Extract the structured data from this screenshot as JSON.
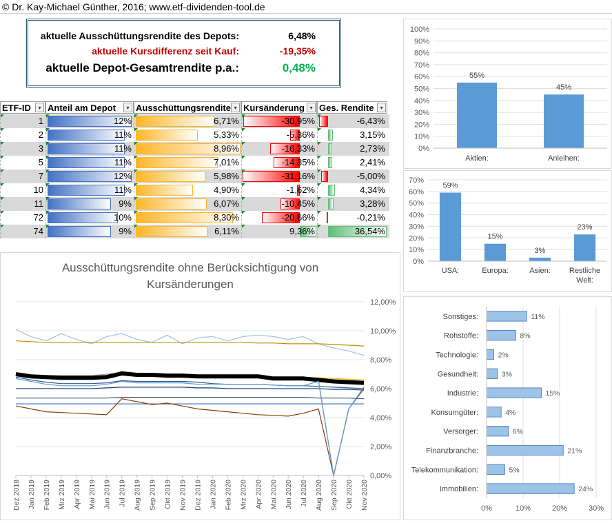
{
  "header": {
    "copyright": "© Dr. Kay-Michael Günther, 2016; www.etf-dividenden-tool.de"
  },
  "summary": {
    "rows": [
      {
        "label": "aktuelle Ausschüttungsrendite des Depots:",
        "value": "6,48%",
        "color": "#000000"
      },
      {
        "label": "aktuelle Kursdifferenz seit Kauf:",
        "value": "-19,35%",
        "color": "#c00000"
      },
      {
        "label": "aktuelle Depot-Gesamtrendite p.a.:",
        "value": "0,48%",
        "color": "#00b050"
      }
    ]
  },
  "table": {
    "headers": [
      "ETF-ID",
      "Anteil am Depot",
      "Ausschüttungsrendite",
      "Kursänderung",
      "Ges. Rendite"
    ],
    "rows": [
      {
        "id": "1",
        "anteil": "12%",
        "ausschuettung": "6,71%",
        "kurs": "-30,95%",
        "ges": "-6,43%",
        "anteil_v": 12,
        "aus_v": 6.71,
        "kurs_v": -30.95,
        "ges_v": -6.43
      },
      {
        "id": "2",
        "anteil": "11%",
        "ausschuettung": "5,33%",
        "kurs": "-5,36%",
        "ges": "3,15%",
        "anteil_v": 11,
        "aus_v": 5.33,
        "kurs_v": -5.36,
        "ges_v": 3.15
      },
      {
        "id": "3",
        "anteil": "11%",
        "ausschuettung": "8,96%",
        "kurs": "-16,33%",
        "ges": "2,73%",
        "anteil_v": 11,
        "aus_v": 8.96,
        "kurs_v": -16.33,
        "ges_v": 2.73
      },
      {
        "id": "5",
        "anteil": "11%",
        "ausschuettung": "7,01%",
        "kurs": "-14,35%",
        "ges": "2,41%",
        "anteil_v": 11,
        "aus_v": 7.01,
        "kurs_v": -14.35,
        "ges_v": 2.41
      },
      {
        "id": "7",
        "anteil": "12%",
        "ausschuettung": "5,98%",
        "kurs": "-31,16%",
        "ges": "-5,00%",
        "anteil_v": 12,
        "aus_v": 5.98,
        "kurs_v": -31.16,
        "ges_v": -5.0
      },
      {
        "id": "10",
        "anteil": "11%",
        "ausschuettung": "4,90%",
        "kurs": "-1,62%",
        "ges": "4,34%",
        "anteil_v": 11,
        "aus_v": 4.9,
        "kurs_v": -1.62,
        "ges_v": 4.34
      },
      {
        "id": "11",
        "anteil": "9%",
        "ausschuettung": "6,07%",
        "kurs": "-10,45%",
        "ges": "3,28%",
        "anteil_v": 9,
        "aus_v": 6.07,
        "kurs_v": -10.45,
        "ges_v": 3.28
      },
      {
        "id": "72",
        "anteil": "10%",
        "ausschuettung": "8,30%",
        "kurs": "-20,66%",
        "ges": "-0,21%",
        "anteil_v": 10,
        "aus_v": 8.3,
        "kurs_v": -20.66,
        "ges_v": -0.21
      },
      {
        "id": "74",
        "anteil": "9%",
        "ausschuettung": "6,11%",
        "kurs": "9,36%",
        "ges": "36,54%",
        "anteil_v": 9,
        "aus_v": 6.11,
        "kurs_v": 9.36,
        "ges_v": 36.54
      }
    ]
  },
  "chart_data": [
    {
      "type": "bar",
      "categories": [
        "Aktien:",
        "Anleihen:"
      ],
      "values": [
        55,
        45
      ],
      "data_labels": [
        "55%",
        "45%"
      ],
      "ylim": [
        0,
        100
      ],
      "yticks": [
        "0%",
        "10%",
        "20%",
        "30%",
        "40%",
        "50%",
        "60%",
        "70%",
        "80%",
        "90%",
        "100%"
      ],
      "color": "#5b9bd5"
    },
    {
      "type": "bar",
      "categories": [
        "USA:",
        "Europa:",
        "Asien:",
        "Restliche Welt:"
      ],
      "values": [
        59,
        15,
        3,
        23
      ],
      "data_labels": [
        "59%",
        "15%",
        "3%",
        "23%"
      ],
      "ylim": [
        0,
        70
      ],
      "yticks": [
        "0%",
        "10%",
        "20%",
        "30%",
        "40%",
        "50%",
        "60%",
        "70%"
      ],
      "color": "#5b9bd5"
    },
    {
      "type": "line",
      "title": "Ausschüttungsrendite ohne Berücksichtigung von Kursänderungen",
      "x": [
        "Dez 2018",
        "Jan 2019",
        "Feb 2019",
        "Mrz 2019",
        "Apr 2019",
        "Mai 2019",
        "Jun 2019",
        "Jul 2019",
        "Aug 2019",
        "Sep 2019",
        "Okt 2019",
        "Nov 2019",
        "Dez 2019",
        "Jan 2020",
        "Feb 2020",
        "Mrz 2020",
        "Apr 2020",
        "Mai 2020",
        "Jun 2020",
        "Jul 2020",
        "Aug 2020",
        "Sep 2020",
        "Okt 2020",
        "Nov 2020"
      ],
      "ylim": [
        0,
        12
      ],
      "yticks": [
        "0,00%",
        "2,00%",
        "4,00%",
        "6,00%",
        "8,00%",
        "10,00%",
        "12,00%"
      ],
      "series": [
        {
          "color": "#9dc3e6",
          "width": 1.2,
          "values": [
            10.1,
            9.6,
            9.3,
            9.8,
            9.4,
            9.1,
            9.6,
            9.8,
            9.4,
            9.2,
            9.7,
            9.1,
            9.5,
            9.6,
            9.3,
            9.6,
            9.7,
            9.6,
            9.4,
            9.6,
            9.1,
            8.8,
            8.6,
            8.3
          ]
        },
        {
          "color": "#bf9000",
          "width": 1.2,
          "values": [
            9.3,
            9.25,
            9.2,
            9.2,
            9.2,
            9.2,
            9.2,
            9.2,
            9.2,
            9.2,
            9.2,
            9.2,
            9.2,
            9.2,
            9.2,
            9.2,
            9.15,
            9.15,
            9.1,
            9.1,
            9.1,
            9.05,
            9.0,
            8.95
          ]
        },
        {
          "color": "#a5a5a5",
          "width": 1.2,
          "values": [
            7.0,
            6.9,
            6.9,
            6.9,
            6.9,
            6.9,
            7.0,
            7.1,
            7.0,
            7.0,
            7.0,
            7.0,
            6.9,
            6.9,
            6.9,
            6.9,
            6.9,
            6.8,
            6.8,
            6.8,
            6.6,
            0.0,
            4.6,
            6.1
          ]
        },
        {
          "color": "#ffc000",
          "width": 1.4,
          "values": [
            6.95,
            6.9,
            6.85,
            6.8,
            6.8,
            6.8,
            6.85,
            7.05,
            7.0,
            7.0,
            6.95,
            6.95,
            6.9,
            6.9,
            6.9,
            6.9,
            6.85,
            6.8,
            6.8,
            6.75,
            6.75,
            6.7,
            6.65,
            6.6
          ]
        },
        {
          "color": "#000000",
          "width": 6,
          "values": [
            7.0,
            6.85,
            6.8,
            6.75,
            6.75,
            6.75,
            6.8,
            7.05,
            6.95,
            6.95,
            6.9,
            6.9,
            6.85,
            6.85,
            6.85,
            6.85,
            6.85,
            6.7,
            6.7,
            6.7,
            6.6,
            6.5,
            6.45,
            6.4
          ]
        },
        {
          "color": "#2f5597",
          "width": 1.2,
          "values": [
            6.8,
            6.6,
            6.45,
            6.35,
            6.35,
            6.35,
            6.4,
            6.55,
            6.5,
            6.5,
            6.5,
            6.5,
            6.45,
            6.35,
            6.3,
            6.3,
            6.3,
            6.25,
            6.2,
            6.2,
            6.15,
            6.1,
            6.05,
            6.0
          ]
        },
        {
          "color": "#264478",
          "width": 1.2,
          "values": [
            6.0,
            6.0,
            6.0,
            6.0,
            6.0,
            6.0,
            6.05,
            6.1,
            6.1,
            6.1,
            6.1,
            6.1,
            6.05,
            6.05,
            6.0,
            6.0,
            6.0,
            6.0,
            6.0,
            6.0,
            6.0,
            5.95,
            5.95,
            5.9
          ]
        },
        {
          "color": "#44546a",
          "width": 1.2,
          "values": [
            5.35,
            5.35,
            5.35,
            5.35,
            5.35,
            5.35,
            5.35,
            5.4,
            5.4,
            5.4,
            5.4,
            5.4,
            5.4,
            5.4,
            5.4,
            5.4,
            5.4,
            5.4,
            5.4,
            5.4,
            5.35,
            5.35,
            5.35,
            5.3
          ]
        },
        {
          "color": "#4472c4",
          "width": 1.2,
          "values": [
            4.95,
            4.95,
            4.95,
            4.95,
            4.95,
            4.95,
            4.95,
            4.95,
            4.95,
            4.95,
            4.95,
            4.95,
            4.95,
            4.95,
            4.95,
            4.95,
            4.95,
            4.95,
            4.95,
            4.95,
            4.95,
            4.95,
            4.95,
            4.95
          ]
        },
        {
          "color": "#843c0c",
          "width": 1.2,
          "values": [
            4.8,
            4.6,
            4.4,
            4.35,
            4.3,
            4.25,
            4.2,
            5.3,
            5.1,
            4.9,
            5.0,
            4.8,
            4.6,
            4.5,
            4.4,
            4.3,
            4.2,
            4.15,
            4.1,
            4.3,
            4.6,
            0.0,
            4.6,
            6.0
          ]
        },
        {
          "color": "#5b9bd5",
          "width": 1.2,
          "values": [
            6.7,
            6.5,
            6.3,
            6.2,
            6.2,
            6.2,
            6.3,
            6.5,
            6.4,
            6.4,
            6.4,
            6.4,
            6.3,
            6.3,
            6.3,
            6.3,
            6.3,
            6.25,
            6.2,
            6.2,
            6.5,
            0.0,
            4.6,
            6.1
          ]
        }
      ]
    },
    {
      "type": "bar",
      "orientation": "horizontal",
      "categories": [
        "Sonstiges:",
        "Rohstoffe:",
        "Technologie:",
        "Gesundheit:",
        "Industrie:",
        "Konsumgüter:",
        "Versorger:",
        "Finanzbranche:",
        "Telekommunikation:",
        "Immobilien:"
      ],
      "values": [
        11,
        8,
        2,
        3,
        15,
        4,
        6,
        21,
        5,
        24
      ],
      "data_labels": [
        "11%",
        "8%",
        "2%",
        "3%",
        "15%",
        "4%",
        "6%",
        "21%",
        "5%",
        "24%"
      ],
      "xlim": [
        0,
        30
      ],
      "xticks": [
        "0%",
        "10%",
        "20%",
        "30%"
      ],
      "color": "#9dc3e6"
    }
  ]
}
